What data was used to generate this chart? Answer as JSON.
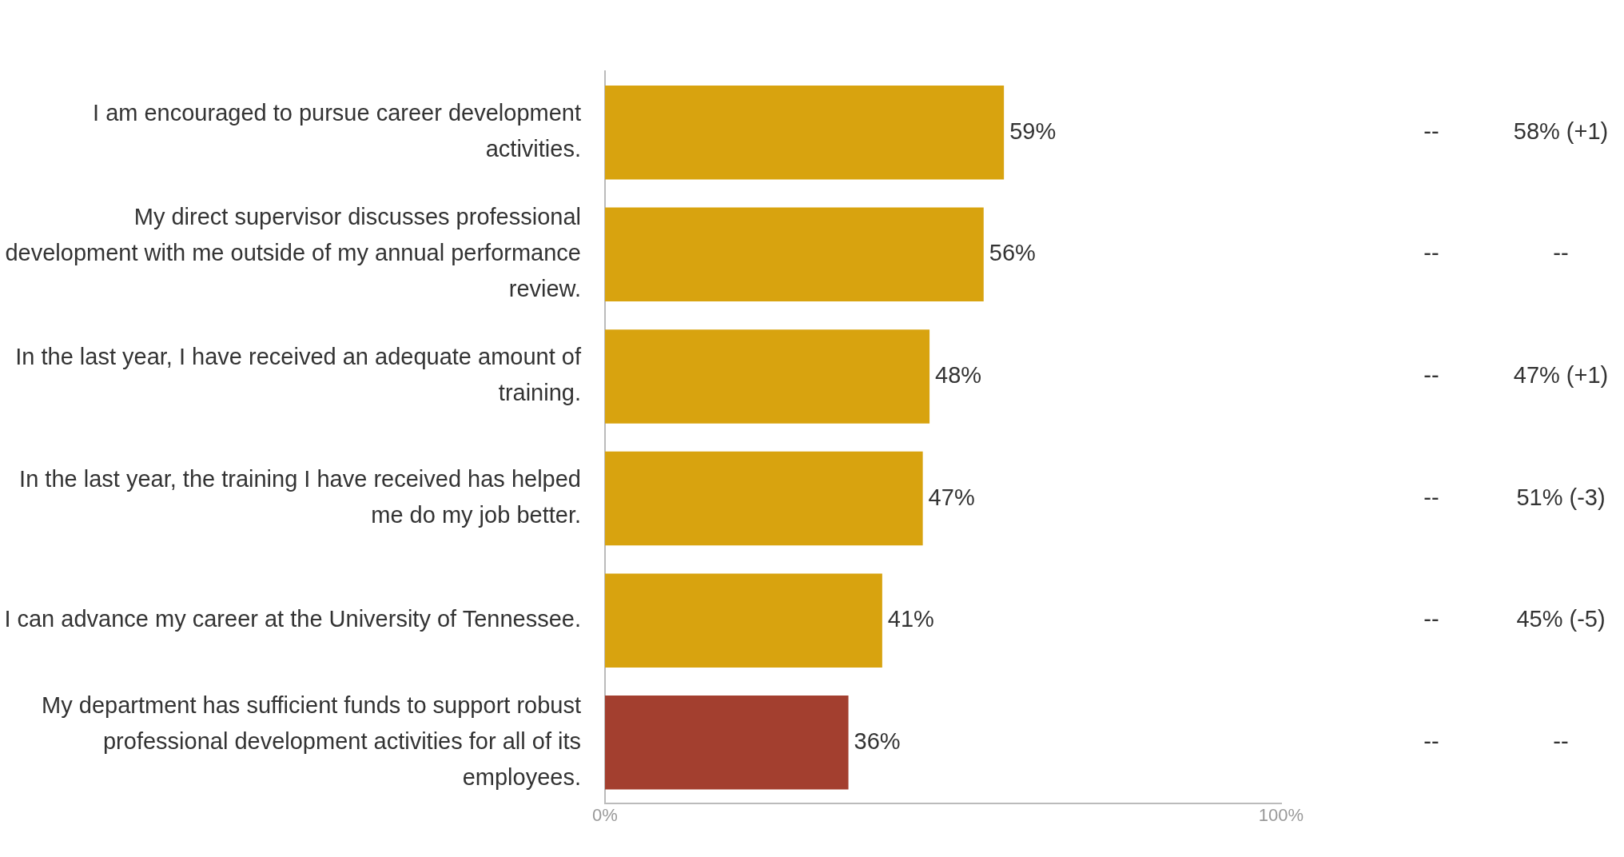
{
  "chart_data": {
    "type": "bar",
    "orientation": "horizontal",
    "categories": [
      "I am encouraged to pursue career development activities.",
      "My direct supervisor discusses professional development with me outside of my annual performance review.",
      "In the last year, I have received an adequate amount of training.",
      "In the last year, the training I have received has helped me do my job better.",
      "I can advance my career at the University of Tennessee.",
      "My department has sufficient funds to support robust professional development activities for all of its employees."
    ],
    "values": [
      59,
      56,
      48,
      47,
      41,
      36
    ],
    "value_labels": [
      "59%",
      "56%",
      "48%",
      "47%",
      "41%",
      "36%"
    ],
    "colors": [
      "#d8a30f",
      "#d8a30f",
      "#d8a30f",
      "#d8a30f",
      "#d8a30f",
      "#a33f2f"
    ],
    "xlim": [
      0,
      100
    ],
    "xticks": [
      {
        "value": 0,
        "label": "0%"
      },
      {
        "value": 100,
        "label": "100%"
      }
    ],
    "grid": false,
    "legend": false,
    "annotations": [
      "--",
      "--",
      "--",
      "--",
      "--",
      "--",
      "58% (+1)",
      "--",
      "47% (+1)",
      "51% (-3)",
      "45% (-5)",
      "--"
    ]
  }
}
